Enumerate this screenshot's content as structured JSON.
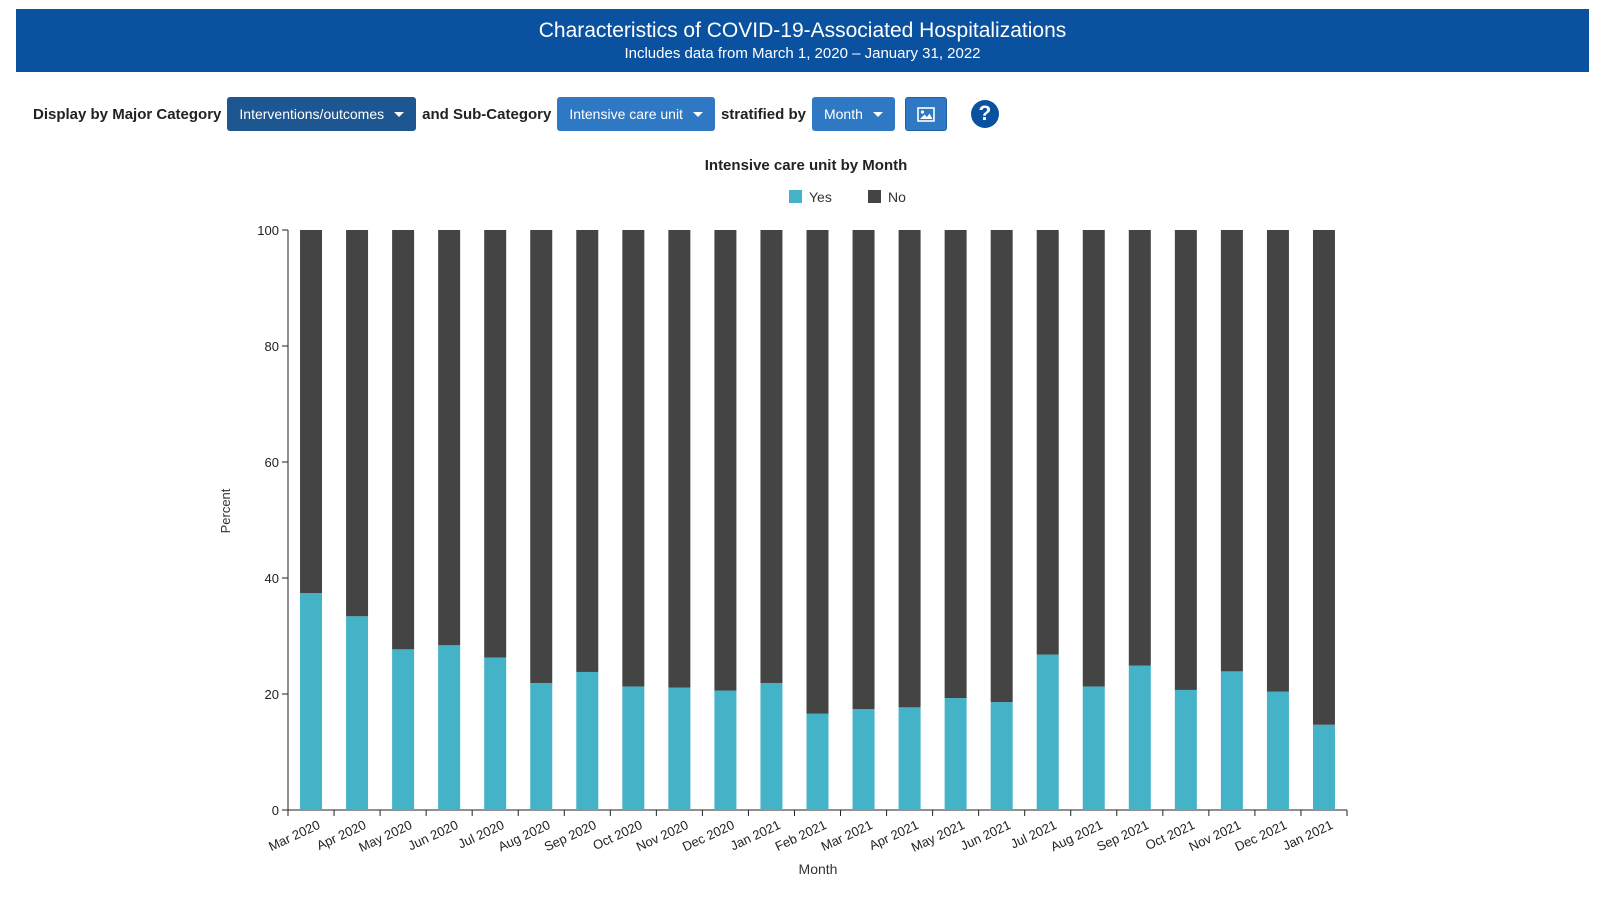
{
  "header": {
    "title": "Characteristics of COVID-19-Associated Hospitalizations",
    "subtitle": "Includes data from March 1, 2020 – January 31, 2022"
  },
  "controls": {
    "major_label": "Display by Major Category",
    "major_value": "Interventions/outcomes",
    "sub_label": "and Sub-Category",
    "sub_value": "Intensive care unit",
    "strat_label": "stratified by",
    "strat_value": "Month",
    "image_button_icon": "image-icon",
    "help_icon": "help-icon",
    "help_text": "?"
  },
  "colors": {
    "banner": "#0a52a0",
    "yes": "#45b3c7",
    "no": "#444444"
  },
  "chart_data": {
    "type": "bar",
    "stacked": true,
    "title": "Intensive care unit by Month",
    "xlabel": "Month",
    "ylabel": "Percent",
    "ylim": [
      0,
      100
    ],
    "yticks": [
      0,
      20,
      40,
      60,
      80,
      100
    ],
    "legend_position": "top-center",
    "categories": [
      "Mar 2020",
      "Apr 2020",
      "May 2020",
      "Jun 2020",
      "Jul 2020",
      "Aug 2020",
      "Sep 2020",
      "Oct 2020",
      "Nov 2020",
      "Dec 2020",
      "Jan 2021",
      "Feb 2021",
      "Mar 2021",
      "Apr 2021",
      "May 2021",
      "Jun 2021",
      "Jul 2021",
      "Aug 2021",
      "Sep 2021",
      "Oct 2021",
      "Nov 2021",
      "Dec 2021",
      "Jan 2021"
    ],
    "series": [
      {
        "name": "Yes",
        "color": "#45b3c7",
        "values": [
          37.4,
          33.4,
          27.7,
          28.4,
          26.3,
          21.9,
          23.8,
          21.3,
          21.1,
          20.6,
          21.9,
          16.6,
          17.4,
          17.7,
          19.3,
          18.6,
          26.8,
          21.3,
          24.9,
          20.7,
          23.9,
          20.4,
          14.7
        ]
      },
      {
        "name": "No",
        "color": "#444444",
        "values": [
          62.6,
          66.6,
          72.3,
          71.6,
          73.7,
          78.1,
          76.2,
          78.7,
          78.9,
          79.4,
          78.1,
          83.4,
          82.6,
          82.3,
          80.7,
          81.4,
          73.2,
          78.7,
          75.1,
          79.3,
          76.1,
          79.6,
          85.3
        ]
      }
    ]
  }
}
